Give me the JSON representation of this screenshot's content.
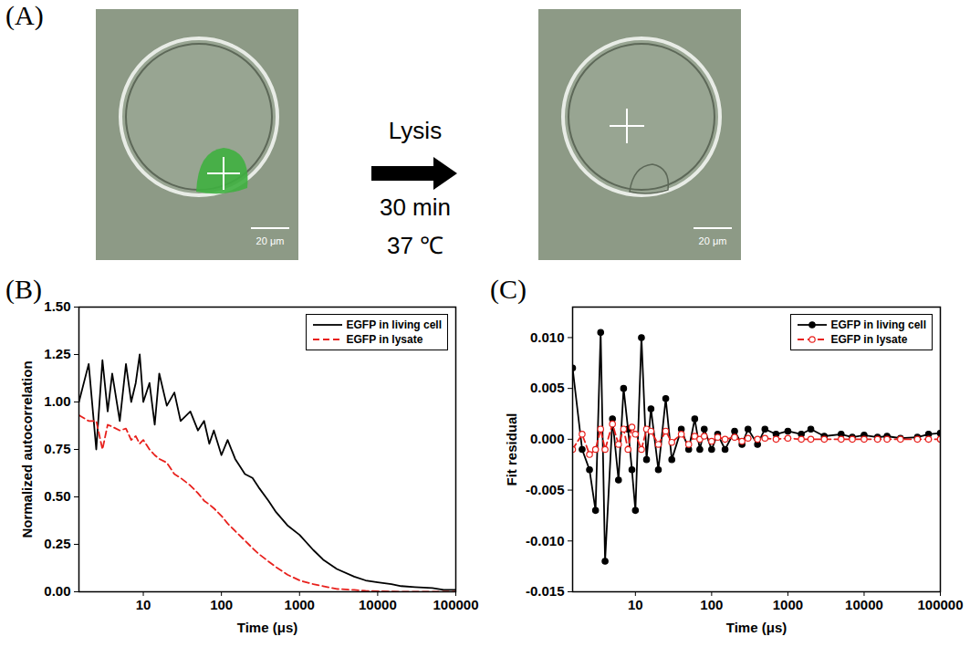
{
  "panel_a": {
    "panel_label": "(A)",
    "arrow_labels": [
      "Lysis",
      "30 min",
      "37 ℃"
    ],
    "images": [
      {
        "scale_bar": "20 μm"
      },
      {
        "scale_bar": "20 μm"
      }
    ]
  },
  "chart_data": [
    {
      "type": "line",
      "panel_label": "(B)",
      "x_label": "Time (μs)",
      "y_label": "Normalized autocorrelation",
      "log": "x",
      "grid": false,
      "legend": "top-right",
      "xlim": [
        1.5,
        100000
      ],
      "xticks": [
        10,
        100,
        1000,
        10000,
        100000
      ],
      "ylim": [
        0,
        1.5
      ],
      "yticks": [
        {
          "value": 0,
          "label": "0.00"
        },
        {
          "value": 0.25,
          "label": "0.25"
        },
        {
          "value": 0.5,
          "label": "0.50"
        },
        {
          "value": 0.75,
          "label": "0.75"
        },
        {
          "value": 1,
          "label": "1.00"
        },
        {
          "value": 1.25,
          "label": "1.25"
        },
        {
          "value": 1.5,
          "label": "1.50"
        }
      ],
      "x": [
        1.5,
        2,
        2.5,
        3,
        3.5,
        4,
        5,
        6,
        7,
        8,
        9,
        10,
        12,
        14,
        16,
        20,
        25,
        30,
        40,
        50,
        60,
        70,
        80,
        100,
        120,
        150,
        200,
        250,
        300,
        400,
        500,
        700,
        1000,
        1500,
        2000,
        3000,
        5000,
        7000,
        10000,
        15000,
        20000,
        30000,
        50000,
        70000,
        100000
      ],
      "series": [
        {
          "name": "EGFP in living cell",
          "color": "#000000",
          "line_style": "solid",
          "values": [
            1.0,
            1.2,
            0.75,
            1.22,
            0.95,
            1.15,
            0.9,
            1.2,
            1.0,
            1.1,
            1.25,
            1.0,
            1.1,
            0.88,
            1.15,
            0.98,
            1.05,
            0.9,
            0.95,
            0.85,
            0.9,
            0.78,
            0.85,
            0.72,
            0.8,
            0.7,
            0.62,
            0.6,
            0.55,
            0.48,
            0.42,
            0.35,
            0.3,
            0.22,
            0.17,
            0.12,
            0.08,
            0.06,
            0.05,
            0.04,
            0.03,
            0.025,
            0.02,
            0.01,
            0.01
          ]
        },
        {
          "name": "EGFP in lysate",
          "color": "#e8201c",
          "line_style": "dashed",
          "values": [
            0.93,
            0.9,
            0.9,
            0.75,
            0.88,
            0.87,
            0.85,
            0.86,
            0.8,
            0.82,
            0.78,
            0.8,
            0.75,
            0.72,
            0.7,
            0.68,
            0.62,
            0.6,
            0.56,
            0.52,
            0.48,
            0.46,
            0.44,
            0.4,
            0.36,
            0.32,
            0.27,
            0.23,
            0.2,
            0.16,
            0.13,
            0.09,
            0.06,
            0.04,
            0.03,
            0.015,
            0.01,
            0.005,
            0.003,
            0.002,
            0,
            0,
            0,
            0,
            0
          ]
        }
      ]
    },
    {
      "type": "line",
      "panel_label": "(C)",
      "x_label": "Time (μs)",
      "y_label": "Fit residual",
      "log": "x",
      "grid": false,
      "legend": "top-right",
      "xlim": [
        1.5,
        100000
      ],
      "xticks": [
        10,
        100,
        1000,
        10000,
        100000
      ],
      "ylim": [
        -0.015,
        0.013
      ],
      "yticks": [
        {
          "value": -0.015,
          "label": "-0.015"
        },
        {
          "value": -0.01,
          "label": "-0.010"
        },
        {
          "value": -0.005,
          "label": "-0.005"
        },
        {
          "value": 0,
          "label": "0.000"
        },
        {
          "value": 0.005,
          "label": "0.005"
        },
        {
          "value": 0.01,
          "label": "0.010"
        }
      ],
      "x": [
        1.5,
        2,
        2.5,
        3,
        3.5,
        4,
        5,
        6,
        7,
        8,
        9,
        10,
        12,
        14,
        16,
        20,
        25,
        30,
        40,
        50,
        60,
        70,
        80,
        100,
        120,
        150,
        200,
        250,
        300,
        400,
        500,
        700,
        1000,
        1500,
        2000,
        3000,
        5000,
        7000,
        10000,
        15000,
        20000,
        30000,
        50000,
        70000,
        100000
      ],
      "series": [
        {
          "name": "EGFP in living cell",
          "color": "#000000",
          "line_style": "solid",
          "marker": "circle",
          "values": [
            0.007,
            -0.001,
            -0.003,
            -0.007,
            0.0105,
            -0.012,
            0.002,
            -0.004,
            0.005,
            0.001,
            -0.003,
            -0.007,
            0.01,
            -0.002,
            0.003,
            -0.003,
            0.004,
            -0.002,
            0.001,
            -0.001,
            0.002,
            -0.001,
            0.001,
            -0.001,
            0.0005,
            -0.001,
            0.0008,
            -0.0005,
            0.001,
            -0.0005,
            0.001,
            0.0005,
            0.0008,
            0.0005,
            0.001,
            0.0003,
            0.0005,
            0.0002,
            0.0004,
            0.0002,
            0.0003,
            0.0001,
            0.0002,
            0.0005,
            0.0006
          ]
        },
        {
          "name": "EGFP in lysate",
          "color": "#e8201c",
          "line_style": "dashed",
          "marker": "open_circle",
          "values": [
            -0.001,
            0.0005,
            -0.0015,
            -0.001,
            0.001,
            -0.001,
            0.0015,
            -0.0005,
            0.001,
            -0.001,
            0.0012,
            0.0005,
            -0.001,
            0.001,
            0.0008,
            -0.0005,
            0.0008,
            -0.0003,
            0.0005,
            -0.0005,
            0.0003,
            0,
            0.0003,
            -0.0002,
            0.0002,
            0,
            0.0002,
            -0.0002,
            0.0001,
            0,
            0.0001,
            0,
            0.0001,
            0,
            0,
            0,
            0,
            0,
            0,
            0,
            0,
            0,
            0,
            0,
            0
          ]
        }
      ]
    }
  ]
}
